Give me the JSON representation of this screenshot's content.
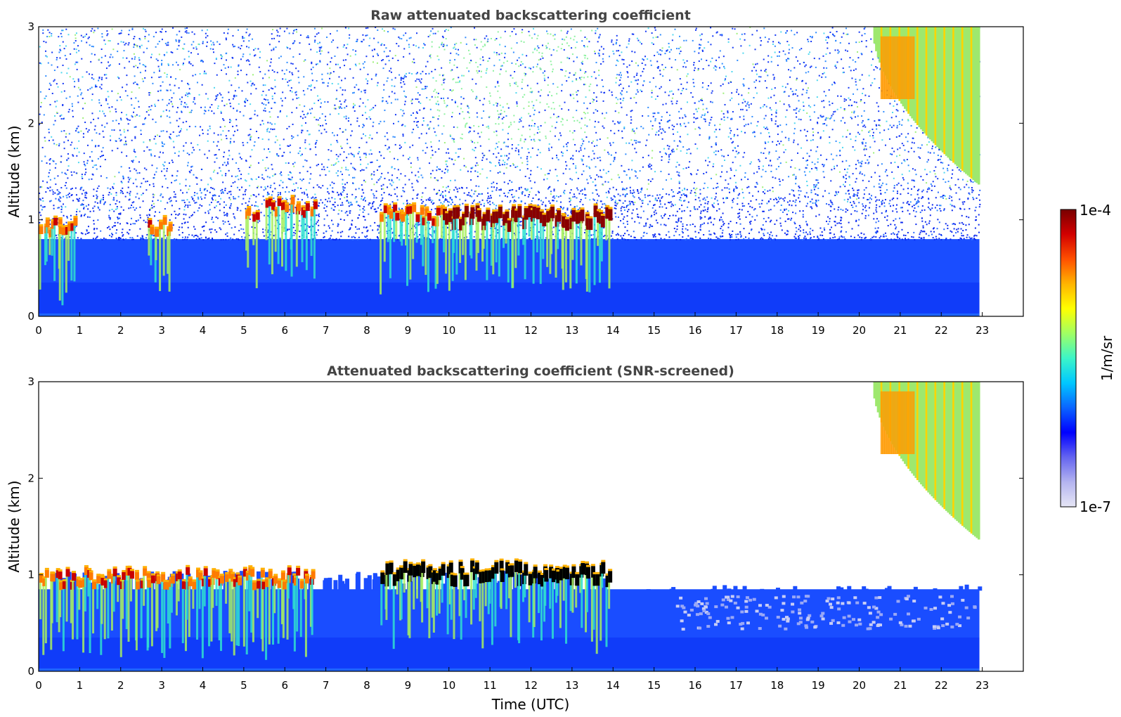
{
  "chart_data": [
    {
      "type": "heatmap",
      "title": "Raw attenuated backscattering coefficient",
      "xlabel": "",
      "ylabel": "Altitude (km)",
      "xlim": [
        0,
        24
      ],
      "ylim": [
        0,
        3
      ],
      "x_ticks": [
        "0",
        "1",
        "2",
        "3",
        "4",
        "5",
        "6",
        "7",
        "8",
        "9",
        "10",
        "11",
        "12",
        "13",
        "14",
        "15",
        "16",
        "17",
        "18",
        "19",
        "20",
        "21",
        "22",
        "23"
      ],
      "y_ticks": [
        "0",
        "1",
        "2",
        "3"
      ],
      "data_time_range": [
        0,
        22.93
      ],
      "features": [
        {
          "kind": "boundary-layer",
          "time": [
            0,
            22.93
          ],
          "altitude_top": 0.8,
          "level": "low"
        },
        {
          "kind": "cloud-top",
          "time": [
            0,
            0.9
          ],
          "altitude": 0.95,
          "level": "high"
        },
        {
          "kind": "cloud-top",
          "time": [
            2.6,
            3.2
          ],
          "altitude": 0.97,
          "level": "high"
        },
        {
          "kind": "cloud-top",
          "time": [
            5.0,
            5.3
          ],
          "altitude": 1.12,
          "level": "high"
        },
        {
          "kind": "cloud-top",
          "time": [
            5.5,
            6.7
          ],
          "altitude": 1.18,
          "level": "high"
        },
        {
          "kind": "cloud-top",
          "time": [
            8.3,
            9.8
          ],
          "altitude": 1.08,
          "level": "high"
        },
        {
          "kind": "cloud-top",
          "time": [
            9.8,
            13.9
          ],
          "altitude": 1.07,
          "level": "saturated"
        },
        {
          "kind": "cirrus",
          "time": [
            20.3,
            22.93
          ],
          "altitude_range": [
            1.35,
            3.0
          ],
          "level": "medium-high"
        },
        {
          "kind": "noise",
          "time": [
            0,
            22.93
          ],
          "altitude_range": [
            1.0,
            3.0
          ],
          "level": "noise"
        }
      ]
    },
    {
      "type": "heatmap",
      "title": "Attenuated backscattering coefficient (SNR-screened)",
      "xlabel": "Time (UTC)",
      "ylabel": "Altitude (km)",
      "xlim": [
        0,
        24
      ],
      "ylim": [
        0,
        3
      ],
      "x_ticks": [
        "0",
        "1",
        "2",
        "3",
        "4",
        "5",
        "6",
        "7",
        "8",
        "9",
        "10",
        "11",
        "12",
        "13",
        "14",
        "15",
        "16",
        "17",
        "18",
        "19",
        "20",
        "21",
        "22",
        "23"
      ],
      "y_ticks": [
        "0",
        "1",
        "2",
        "3"
      ],
      "data_time_range": [
        0,
        22.93
      ],
      "features": [
        {
          "kind": "boundary-layer",
          "time": [
            0,
            22.93
          ],
          "altitude_top": 0.85,
          "level": "low"
        },
        {
          "kind": "cloud-top",
          "time": [
            0,
            6.7
          ],
          "altitude": 1.0,
          "level": "high"
        },
        {
          "kind": "cloud-top",
          "time": [
            8.3,
            13.9
          ],
          "altitude": 1.07,
          "level": "saturated"
        },
        {
          "kind": "cirrus",
          "time": [
            20.3,
            22.93
          ],
          "altitude_range": [
            1.35,
            3.0
          ],
          "level": "medium-high"
        }
      ]
    }
  ],
  "colorbar": {
    "label": "1/m/sr",
    "max_label": "1e-4",
    "min_label": "1e-7",
    "colors": [
      "#e6e6f5",
      "#b4b4f0",
      "#6464f0",
      "#0000ff",
      "#0a64ff",
      "#00c8ff",
      "#3cf5c8",
      "#a0ff64",
      "#ffff00",
      "#ffb400",
      "#ff5000",
      "#d20000",
      "#780000"
    ]
  }
}
